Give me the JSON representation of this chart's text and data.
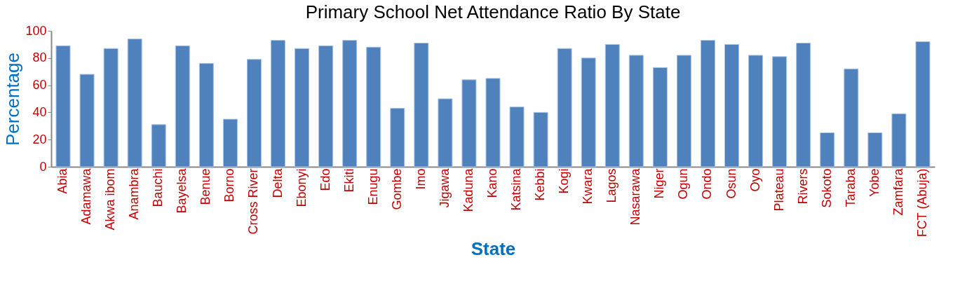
{
  "chart_data": {
    "type": "bar",
    "title": "Primary School Net Attendance Ratio  By State",
    "xlabel": "State",
    "ylabel": "Percentage",
    "categories": [
      "Abia",
      "Adamawa",
      "Akwa ibom",
      "Anambra",
      "Bauchi",
      "Bayelsa",
      "Benue",
      "Borno",
      "Cross River",
      "Delta",
      "Ebonyi",
      "Edo",
      "Ekiti",
      "Enugu",
      "Gombe",
      "Imo",
      "Jigawa",
      "Kaduna",
      "Kano",
      "Katsina",
      "Kebbi",
      "Kogi",
      "Kwara",
      "Lagos",
      "Nasarawa",
      "Niger",
      "Ogun",
      "Ondo",
      "Osun",
      "Oyo",
      "Plateau",
      "Rivers",
      "Sokoto",
      "Taraba",
      "Yobe",
      "Zamfara",
      "FCT (Abuja)"
    ],
    "values": [
      89,
      68,
      87,
      94,
      31,
      89,
      76,
      35,
      79,
      93,
      87,
      89,
      93,
      88,
      43,
      91,
      50,
      64,
      65,
      44,
      40,
      87,
      80,
      90,
      82,
      73,
      82,
      93,
      90,
      82,
      81,
      91,
      25,
      72,
      25,
      39,
      92
    ],
    "color": "#4f81bd",
    "ylim": [
      0,
      100
    ],
    "yticks": [
      0,
      20,
      40,
      60,
      80,
      100
    ],
    "grid": false
  }
}
